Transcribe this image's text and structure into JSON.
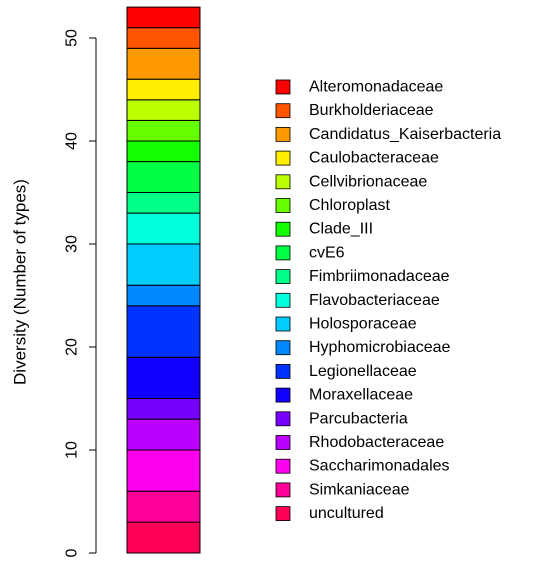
{
  "chart_data": {
    "type": "bar",
    "stacked": true,
    "title": "",
    "xlabel": "",
    "ylabel": "Diversity (Number of types)",
    "ylim": [
      0,
      53
    ],
    "yticks": [
      0,
      10,
      20,
      30,
      40,
      50
    ],
    "legend_position": "right",
    "series": [
      {
        "name": "uncultured",
        "value": 3,
        "color": "#FF0055"
      },
      {
        "name": "Simkaniaceae",
        "value": 3,
        "color": "#FF0099"
      },
      {
        "name": "Saccharimonadales",
        "value": 4,
        "color": "#FF00EE"
      },
      {
        "name": "Rhodobacteraceae",
        "value": 3,
        "color": "#BB00FF"
      },
      {
        "name": "Parcubacteria",
        "value": 2,
        "color": "#7700FF"
      },
      {
        "name": "Moraxellaceae",
        "value": 4,
        "color": "#1100FF"
      },
      {
        "name": "Legionellaceae",
        "value": 5,
        "color": "#0033FF"
      },
      {
        "name": "Hyphomicrobiaceae",
        "value": 2,
        "color": "#0088FF"
      },
      {
        "name": "Holosporaceae",
        "value": 4,
        "color": "#00CCFF"
      },
      {
        "name": "Flavobacteriaceae",
        "value": 3,
        "color": "#00FFDD"
      },
      {
        "name": "Fimbriimonadaceae",
        "value": 2,
        "color": "#00FF88"
      },
      {
        "name": "cvE6",
        "value": 3,
        "color": "#00FF44"
      },
      {
        "name": "Clade_III",
        "value": 2,
        "color": "#11FF00"
      },
      {
        "name": "Chloroplast",
        "value": 2,
        "color": "#66FF00"
      },
      {
        "name": "Cellvibrionaceae",
        "value": 2,
        "color": "#BBFF00"
      },
      {
        "name": "Caulobacteraceae",
        "value": 2,
        "color": "#FFEE00"
      },
      {
        "name": "Candidatus_Kaiserbacteria",
        "value": 3,
        "color": "#FF9900"
      },
      {
        "name": "Burkholderiaceae",
        "value": 2,
        "color": "#FF5500"
      },
      {
        "name": "Alteromonadaceae",
        "value": 2,
        "color": "#FF0000"
      }
    ]
  }
}
